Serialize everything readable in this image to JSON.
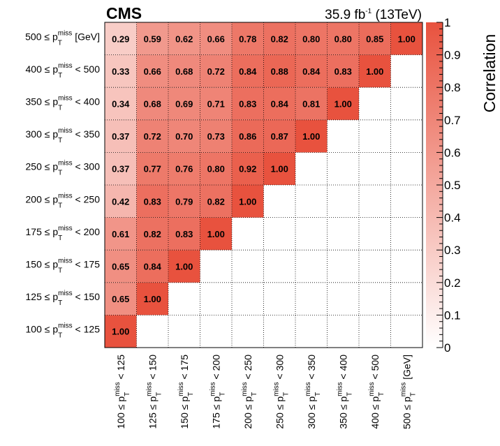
{
  "header": {
    "experiment": "CMS",
    "lumi_value": "35.9 fb",
    "lumi_exp": "-1",
    "energy": " (13TeV)"
  },
  "chart_data": {
    "type": "heatmap",
    "title": "",
    "colorbar_title": "Correlation",
    "colorbar_ticks": [
      "0",
      "0.1",
      "0.2",
      "0.3",
      "0.4",
      "0.5",
      "0.6",
      "0.7",
      "0.8",
      "0.9",
      "1"
    ],
    "zlim": [
      0,
      1
    ],
    "low_color": "#ffffff",
    "high_color": "#e8523e",
    "categories": [
      {
        "pre": "100 ≤ p",
        "post": " < 125"
      },
      {
        "pre": "125 ≤ p",
        "post": " < 150"
      },
      {
        "pre": "150 ≤ p",
        "post": " < 175"
      },
      {
        "pre": "175 ≤ p",
        "post": " < 200"
      },
      {
        "pre": "200 ≤ p",
        "post": " < 250"
      },
      {
        "pre": "250 ≤ p",
        "post": " < 300"
      },
      {
        "pre": "300 ≤ p",
        "post": " < 350"
      },
      {
        "pre": "350 ≤ p",
        "post": " < 400"
      },
      {
        "pre": "400 ≤ p",
        "post": " < 500"
      },
      {
        "pre": "500 ≤ p",
        "post": " [GeV]"
      }
    ],
    "var_sup": "miss",
    "var_sub": "T",
    "matrix": [
      [
        1.0
      ],
      [
        0.65,
        1.0
      ],
      [
        0.65,
        0.84,
        1.0
      ],
      [
        0.61,
        0.82,
        0.83,
        1.0
      ],
      [
        0.42,
        0.83,
        0.79,
        0.82,
        1.0
      ],
      [
        0.37,
        0.77,
        0.76,
        0.8,
        0.92,
        1.0
      ],
      [
        0.37,
        0.72,
        0.7,
        0.73,
        0.86,
        0.87,
        1.0
      ],
      [
        0.34,
        0.68,
        0.69,
        0.71,
        0.83,
        0.84,
        0.81,
        1.0
      ],
      [
        0.33,
        0.66,
        0.68,
        0.72,
        0.84,
        0.88,
        0.84,
        0.83,
        1.0
      ],
      [
        0.29,
        0.59,
        0.62,
        0.66,
        0.78,
        0.82,
        0.8,
        0.8,
        0.85,
        1.0
      ]
    ],
    "value_format": "%.2f"
  }
}
